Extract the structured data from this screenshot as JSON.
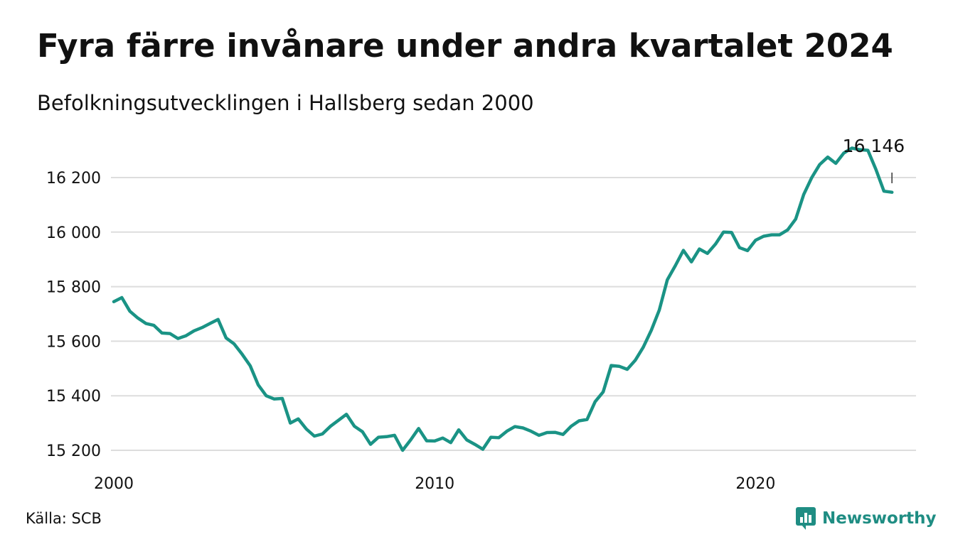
{
  "title": "Fyra färre invånare under andra kvartalet 2024",
  "subtitle": "Befolkningsutvecklingen i Hallsberg sedan 2000",
  "source": "Källa: SCB",
  "brand": {
    "name": "Newsworthy",
    "icon": "newsworthy-logo-icon",
    "color": "#1f8d83"
  },
  "chart_data": {
    "type": "line",
    "title": "Fyra färre invånare under andra kvartalet 2024",
    "subtitle": "Befolkningsutvecklingen i Hallsberg sedan 2000",
    "xlabel": "",
    "ylabel": "",
    "xlim": [
      2000.0,
      2025.0
    ],
    "ylim": [
      15180,
      16320
    ],
    "yticks": [
      15200,
      15400,
      15600,
      15800,
      16000,
      16200
    ],
    "ytick_labels": [
      "15 200",
      "15 400",
      "15 600",
      "15 800",
      "16 000",
      "16 200"
    ],
    "xticks": [
      2000,
      2010,
      2020
    ],
    "xtick_labels": [
      "2000",
      "2010",
      "2020"
    ],
    "grid": "horizontal",
    "line_color": "#1a9385",
    "grid_color": "#dddddd",
    "end_label": "16 146",
    "series": [
      {
        "x": [
          "2000Q1",
          "2000Q2",
          "2000Q3",
          "2000Q4",
          "2001Q1",
          "2001Q2",
          "2001Q3",
          "2001Q4",
          "2002Q1",
          "2002Q2",
          "2002Q3",
          "2002Q4",
          "2003Q1",
          "2003Q2",
          "2003Q3",
          "2003Q4",
          "2004Q1",
          "2004Q2",
          "2004Q3",
          "2004Q4",
          "2005Q1",
          "2005Q2",
          "2005Q3",
          "2005Q4",
          "2006Q1",
          "2006Q2",
          "2006Q3",
          "2006Q4",
          "2007Q1",
          "2007Q2",
          "2007Q3",
          "2007Q4",
          "2008Q1",
          "2008Q2",
          "2008Q3",
          "2008Q4",
          "2009Q1",
          "2009Q2",
          "2009Q3",
          "2009Q4",
          "2010Q1",
          "2010Q2",
          "2010Q3",
          "2010Q4",
          "2011Q1",
          "2011Q2",
          "2011Q3",
          "2011Q4",
          "2012Q1",
          "2012Q2",
          "2012Q3",
          "2012Q4",
          "2013Q1",
          "2013Q2",
          "2013Q3",
          "2013Q4",
          "2014Q1",
          "2014Q2",
          "2014Q3",
          "2014Q4",
          "2015Q1",
          "2015Q2",
          "2015Q3",
          "2015Q4",
          "2016Q1",
          "2016Q2",
          "2016Q3",
          "2016Q4",
          "2017Q1",
          "2017Q2",
          "2017Q3",
          "2017Q4",
          "2018Q1",
          "2018Q2",
          "2018Q3",
          "2018Q4",
          "2019Q1",
          "2019Q2",
          "2019Q3",
          "2019Q4",
          "2020Q1",
          "2020Q2",
          "2020Q3",
          "2020Q4",
          "2021Q1",
          "2021Q2",
          "2021Q3",
          "2021Q4",
          "2022Q1",
          "2022Q2",
          "2022Q3",
          "2022Q4",
          "2023Q1",
          "2023Q2",
          "2023Q3",
          "2023Q4",
          "2024Q1",
          "2024Q2"
        ],
        "values": [
          15745,
          15760,
          15710,
          15685,
          15665,
          15658,
          15630,
          15628,
          15610,
          15620,
          15638,
          15650,
          15665,
          15680,
          15612,
          15590,
          15552,
          15510,
          15440,
          15400,
          15388,
          15390,
          15300,
          15315,
          15278,
          15252,
          15260,
          15288,
          15310,
          15332,
          15288,
          15268,
          15222,
          15248,
          15250,
          15255,
          15200,
          15238,
          15280,
          15235,
          15234,
          15245,
          15228,
          15275,
          15238,
          15222,
          15204,
          15248,
          15246,
          15270,
          15287,
          15282,
          15270,
          15255,
          15265,
          15266,
          15258,
          15288,
          15308,
          15313,
          15378,
          15414,
          15511,
          15508,
          15497,
          15530,
          15578,
          15640,
          15714,
          15825,
          15877,
          15933,
          15891,
          15938,
          15922,
          15956,
          16000,
          15999,
          15943,
          15932,
          15970,
          15985,
          15990,
          15990,
          16008,
          16048,
          16138,
          16200,
          16248,
          16275,
          16252,
          16290,
          16308,
          16302,
          16300,
          16230,
          16150,
          16146
        ]
      }
    ]
  }
}
